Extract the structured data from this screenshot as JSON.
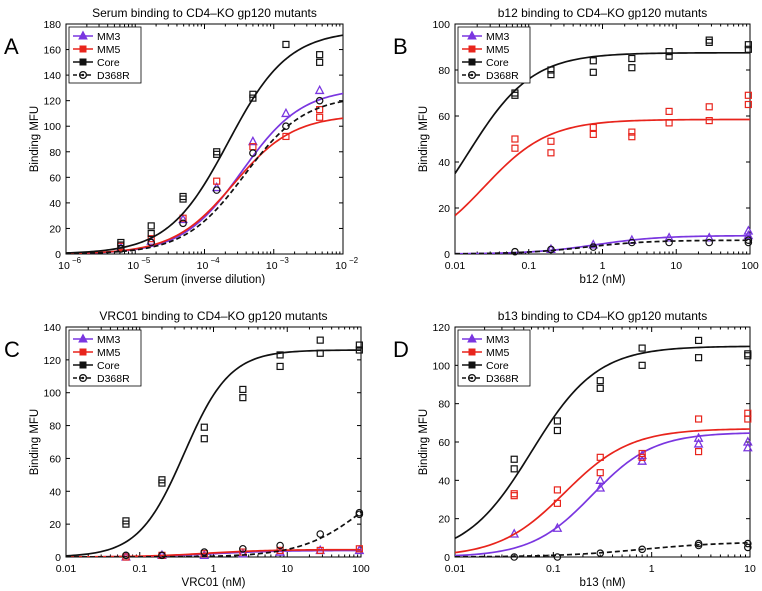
{
  "figure": {
    "background": "#ffffff"
  },
  "chart_data": [
    {
      "panel": "A",
      "type": "scatter",
      "title": "Serum binding to CD4–KO gp120 mutants",
      "xlabel": "Serum (inverse dilution)",
      "ylabel": "Binding MFU",
      "xscale": "log",
      "xlim": [
        1e-06,
        0.01
      ],
      "ylim": [
        0,
        180
      ],
      "xticks": [
        1e-06,
        1e-05,
        0.0001,
        0.001,
        0.01
      ],
      "xticklabels": [
        "10",
        "10",
        "10",
        "10",
        "10"
      ],
      "xtickexp": [
        "−6",
        "−5",
        "−4",
        "−3",
        "−2"
      ],
      "yticks": [
        0,
        20,
        40,
        60,
        80,
        100,
        120,
        140,
        160,
        180
      ],
      "yticklabels": [
        "0",
        "20",
        "40",
        "60",
        "80",
        "100",
        "120",
        "140",
        "160",
        "180"
      ],
      "legend_position": "top-left",
      "series": [
        {
          "name": "MM3",
          "color": "#7a36e0",
          "marker": "triangle",
          "dash": false,
          "points": [
            [
              6.2e-06,
              5
            ],
            [
              1.7e-05,
              10
            ],
            [
              4.9e-05,
              27
            ],
            [
              0.00015,
              52
            ],
            [
              0.0005,
              88
            ],
            [
              0.0015,
              110
            ],
            [
              0.0046,
              128
            ]
          ],
          "curve": {
            "model": "hill-log",
            "bottom": 0,
            "top": 130,
            "ec50": 0.00035,
            "hill": 1.0
          }
        },
        {
          "name": "MM5",
          "color": "#e8241c",
          "marker": "square",
          "dash": false,
          "points": [
            [
              6.2e-06,
              6
            ],
            [
              1.7e-05,
              12
            ],
            [
              4.9e-05,
              28
            ],
            [
              0.00015,
              57
            ],
            [
              0.0005,
              84
            ],
            [
              0.0015,
              92
            ],
            [
              0.0046,
              107
            ],
            [
              0.0046,
              113
            ]
          ],
          "curve": {
            "model": "hill-log",
            "bottom": 0,
            "top": 109,
            "ec50": 0.00026,
            "hill": 1.0
          }
        },
        {
          "name": "Core",
          "color": "#111111",
          "marker": "square",
          "dash": false,
          "points": [
            [
              6.2e-06,
              7
            ],
            [
              6.2e-06,
              9
            ],
            [
              1.7e-05,
              16
            ],
            [
              1.7e-05,
              22
            ],
            [
              4.9e-05,
              43
            ],
            [
              4.9e-05,
              45
            ],
            [
              0.00015,
              78
            ],
            [
              0.00015,
              80
            ],
            [
              0.0005,
              122
            ],
            [
              0.0005,
              125
            ],
            [
              0.0015,
              164
            ],
            [
              0.0046,
              150
            ],
            [
              0.0046,
              156
            ]
          ],
          "curve": {
            "model": "hill-log",
            "bottom": 0,
            "top": 175,
            "ec50": 0.00022,
            "hill": 1.0
          }
        },
        {
          "name": "D368R",
          "color": "#111111",
          "marker": "circle",
          "dash": true,
          "points": [
            [
              6.2e-06,
              4
            ],
            [
              1.7e-05,
              9
            ],
            [
              4.9e-05,
              24
            ],
            [
              0.00015,
              50
            ],
            [
              0.0005,
              79
            ],
            [
              0.0015,
              100
            ],
            [
              0.0046,
              120
            ]
          ],
          "curve": {
            "model": "hill-log",
            "bottom": 0,
            "top": 124,
            "ec50": 0.00038,
            "hill": 1.0
          }
        }
      ]
    },
    {
      "panel": "B",
      "type": "scatter",
      "title": "b12 binding to CD4–KO gp120 mutants",
      "xlabel": "b12 (nM)",
      "ylabel": "Binding MFU",
      "xscale": "log",
      "xlim": [
        0.01,
        100
      ],
      "ylim": [
        0,
        100
      ],
      "xticks": [
        0.01,
        0.1,
        1,
        10,
        100
      ],
      "xticklabels": [
        "0.01",
        "0.1",
        "1",
        "10",
        "100"
      ],
      "yticks": [
        0,
        20,
        40,
        60,
        80,
        100
      ],
      "yticklabels": [
        "0",
        "20",
        "40",
        "60",
        "80",
        "100"
      ],
      "legend_position": "top-left",
      "series": [
        {
          "name": "MM3",
          "color": "#7a36e0",
          "marker": "triangle",
          "dash": false,
          "points": [
            [
              0.2,
              2
            ],
            [
              0.75,
              4
            ],
            [
              2.5,
              6
            ],
            [
              8,
              7
            ],
            [
              28,
              7
            ],
            [
              95,
              8
            ],
            [
              95,
              10
            ]
          ],
          "curve": {
            "model": "hill-log",
            "bottom": 0,
            "top": 8,
            "ec50": 0.8,
            "hill": 1.0
          }
        },
        {
          "name": "MM5",
          "color": "#e8241c",
          "marker": "square",
          "dash": false,
          "points": [
            [
              0.065,
              46
            ],
            [
              0.065,
              50
            ],
            [
              0.2,
              44
            ],
            [
              0.2,
              49
            ],
            [
              0.75,
              52
            ],
            [
              0.75,
              55
            ],
            [
              2.5,
              51
            ],
            [
              2.5,
              53
            ],
            [
              8,
              57
            ],
            [
              8,
              62
            ],
            [
              28,
              58
            ],
            [
              28,
              64
            ],
            [
              95,
              65
            ],
            [
              95,
              69
            ]
          ],
          "curve": {
            "model": "hill-log",
            "bottom": 0,
            "top": 58.5,
            "ec50": 0.025,
            "hill": 1.0
          }
        },
        {
          "name": "Core",
          "color": "#111111",
          "marker": "square",
          "dash": false,
          "points": [
            [
              0.065,
              69
            ],
            [
              0.065,
              70
            ],
            [
              0.2,
              78
            ],
            [
              0.2,
              80
            ],
            [
              0.75,
              79
            ],
            [
              0.75,
              84
            ],
            [
              2.5,
              81
            ],
            [
              2.5,
              85
            ],
            [
              8,
              86
            ],
            [
              8,
              88
            ],
            [
              28,
              92
            ],
            [
              28,
              93
            ],
            [
              95,
              89
            ],
            [
              95,
              91
            ]
          ],
          "curve": {
            "model": "hill-log",
            "bottom": 0,
            "top": 87.5,
            "ec50": 0.015,
            "hill": 1.0
          }
        },
        {
          "name": "D368R",
          "color": "#111111",
          "marker": "circle",
          "dash": true,
          "points": [
            [
              0.065,
              1
            ],
            [
              0.2,
              2
            ],
            [
              0.75,
              3
            ],
            [
              2.5,
              5
            ],
            [
              8,
              5
            ],
            [
              28,
              5
            ],
            [
              95,
              5
            ],
            [
              95,
              6
            ]
          ],
          "curve": {
            "model": "hill-log",
            "bottom": 0,
            "top": 6,
            "ec50": 0.6,
            "hill": 1.0
          }
        }
      ]
    },
    {
      "panel": "C",
      "type": "scatter",
      "title": "VRC01 binding to CD4–KO gp120 mutants",
      "xlabel": "VRC01 (nM)",
      "ylabel": "Binding MFU",
      "xscale": "log",
      "xlim": [
        0.01,
        100
      ],
      "ylim": [
        0,
        140
      ],
      "xticks": [
        0.01,
        0.1,
        1,
        10,
        100
      ],
      "xticklabels": [
        "0.01",
        "0.1",
        "1",
        "10",
        "100"
      ],
      "yticks": [
        0,
        20,
        40,
        60,
        80,
        100,
        120,
        140
      ],
      "yticklabels": [
        "0",
        "20",
        "40",
        "60",
        "80",
        "100",
        "120",
        "140"
      ],
      "legend_position": "top-left",
      "series": [
        {
          "name": "MM3",
          "color": "#7a36e0",
          "marker": "triangle",
          "dash": false,
          "points": [
            [
              0.065,
              0
            ],
            [
              0.2,
              1
            ],
            [
              0.75,
              1
            ],
            [
              2.5,
              2
            ],
            [
              8,
              3
            ],
            [
              28,
              4
            ],
            [
              95,
              4
            ]
          ],
          "curve": {
            "model": "hill-log",
            "bottom": 0,
            "top": 4,
            "ec50": 1.0,
            "hill": 1.0
          }
        },
        {
          "name": "MM5",
          "color": "#e8241c",
          "marker": "square",
          "dash": false,
          "points": [
            [
              0.065,
              0
            ],
            [
              0.2,
              1
            ],
            [
              0.75,
              2
            ],
            [
              2.5,
              3
            ],
            [
              8,
              4
            ],
            [
              28,
              4
            ],
            [
              95,
              5
            ]
          ],
          "curve": {
            "model": "hill-log",
            "bottom": 0,
            "top": 4.5,
            "ec50": 0.8,
            "hill": 1.0
          }
        },
        {
          "name": "Core",
          "color": "#111111",
          "marker": "square",
          "dash": false,
          "points": [
            [
              0.065,
              20
            ],
            [
              0.065,
              22
            ],
            [
              0.2,
              45
            ],
            [
              0.2,
              47
            ],
            [
              0.75,
              72
            ],
            [
              0.75,
              79
            ],
            [
              2.5,
              97
            ],
            [
              2.5,
              102
            ],
            [
              8,
              116
            ],
            [
              8,
              123
            ],
            [
              28,
              124
            ],
            [
              28,
              132
            ],
            [
              95,
              126
            ],
            [
              95,
              129
            ]
          ],
          "curve": {
            "model": "hill-log",
            "bottom": 0,
            "top": 126,
            "ec50": 0.4,
            "hill": 1.4
          }
        },
        {
          "name": "D368R",
          "color": "#111111",
          "marker": "circle",
          "dash": true,
          "points": [
            [
              0.065,
              1
            ],
            [
              0.2,
              1
            ],
            [
              0.75,
              3
            ],
            [
              2.5,
              5
            ],
            [
              8,
              7
            ],
            [
              28,
              14
            ],
            [
              95,
              26
            ],
            [
              95,
              27
            ]
          ],
          "curve": {
            "model": "hill-log",
            "bottom": 0,
            "top": 60,
            "ec50": 120,
            "hill": 1.0
          }
        }
      ]
    },
    {
      "panel": "D",
      "type": "scatter",
      "title": "b13 binding to CD4–KO gp120 mutants",
      "xlabel": "b13 (nM)",
      "ylabel": "Binding MFU",
      "xscale": "log",
      "xlim": [
        0.01,
        10
      ],
      "ylim": [
        0,
        120
      ],
      "xticks": [
        0.01,
        0.1,
        1,
        10
      ],
      "xticklabels": [
        "0.01",
        "0.1",
        "1",
        "10"
      ],
      "yticks": [
        0,
        20,
        40,
        60,
        80,
        100,
        120
      ],
      "yticklabels": [
        "0",
        "20",
        "40",
        "60",
        "80",
        "100",
        "120"
      ],
      "legend_position": "top-left",
      "series": [
        {
          "name": "MM3",
          "color": "#7a36e0",
          "marker": "triangle",
          "dash": false,
          "points": [
            [
              0.04,
              12
            ],
            [
              0.11,
              15
            ],
            [
              0.3,
              36
            ],
            [
              0.3,
              40
            ],
            [
              0.8,
              50
            ],
            [
              0.8,
              53
            ],
            [
              3,
              59
            ],
            [
              3,
              62
            ],
            [
              9.5,
              57
            ],
            [
              9.5,
              60
            ]
          ],
          "curve": {
            "model": "hill-log",
            "bottom": 0,
            "top": 65,
            "ec50": 0.25,
            "hill": 1.4
          }
        },
        {
          "name": "MM5",
          "color": "#e8241c",
          "marker": "square",
          "dash": false,
          "points": [
            [
              0.04,
              32
            ],
            [
              0.04,
              33
            ],
            [
              0.11,
              28
            ],
            [
              0.11,
              35
            ],
            [
              0.3,
              44
            ],
            [
              0.3,
              52
            ],
            [
              0.8,
              52
            ],
            [
              0.8,
              54
            ],
            [
              3,
              55
            ],
            [
              3,
              72
            ],
            [
              9.5,
              72
            ],
            [
              9.5,
              75
            ]
          ],
          "curve": {
            "model": "hill-log",
            "bottom": 0,
            "top": 67,
            "ec50": 0.13,
            "hill": 1.3
          }
        },
        {
          "name": "Core",
          "color": "#111111",
          "marker": "square",
          "dash": false,
          "points": [
            [
              0.04,
              46
            ],
            [
              0.04,
              51
            ],
            [
              0.11,
              66
            ],
            [
              0.11,
              71
            ],
            [
              0.3,
              88
            ],
            [
              0.3,
              92
            ],
            [
              0.8,
              100
            ],
            [
              0.8,
              109
            ],
            [
              3,
              104
            ],
            [
              3,
              113
            ],
            [
              9.5,
              105
            ],
            [
              9.5,
              106
            ]
          ],
          "curve": {
            "model": "hill-log",
            "bottom": 0,
            "top": 110,
            "ec50": 0.06,
            "hill": 1.3
          }
        },
        {
          "name": "D368R",
          "color": "#111111",
          "marker": "circle",
          "dash": true,
          "points": [
            [
              0.04,
              0
            ],
            [
              0.11,
              0
            ],
            [
              0.3,
              2
            ],
            [
              0.8,
              4
            ],
            [
              3,
              6
            ],
            [
              3,
              7
            ],
            [
              9.5,
              5
            ],
            [
              9.5,
              7
            ]
          ],
          "curve": {
            "model": "hill-log",
            "bottom": 0,
            "top": 8,
            "ec50": 0.8,
            "hill": 1.0
          }
        }
      ]
    }
  ]
}
